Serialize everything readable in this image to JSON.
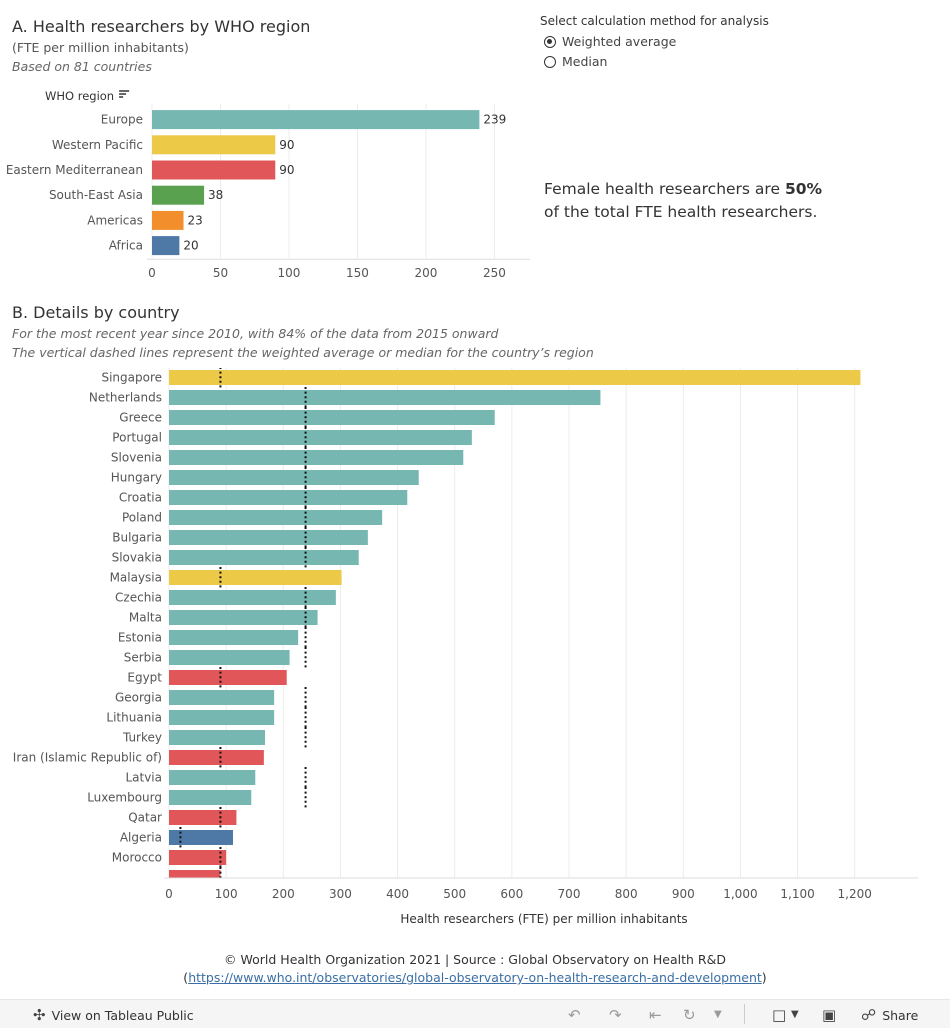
{
  "section_a": {
    "title": "A. Health researchers by WHO region",
    "subtitle": "(FTE per million inhabitants)",
    "note": "Based on 81 countries"
  },
  "parameter": {
    "title": "Select calculation method for analysis",
    "options": [
      {
        "label": "Weighted average",
        "selected": true
      },
      {
        "label": "Median",
        "selected": false
      }
    ]
  },
  "callout": {
    "prefix": "Female health researchers are ",
    "value": "50%",
    "suffix": "of the total FTE health researchers."
  },
  "section_b": {
    "title": "B. Details by country",
    "note1": "For the most recent year  since 2010, with 84% of the data from 2015 onward",
    "note2": "The vertical dashed lines represent the weighted average or median for the country’s region"
  },
  "colors": {
    "Europe": "#76b7b2",
    "Western Pacific": "#edc948",
    "Eastern Mediterranean": "#e15759",
    "South-East Asia": "#59a14f",
    "Americas": "#f28e2b",
    "Africa": "#4e79a7"
  },
  "chart_data": [
    {
      "type": "bar",
      "orientation": "horizontal",
      "header": "WHO region",
      "categories": [
        "Europe",
        "Western Pacific",
        "Eastern Mediterranean",
        "South-East Asia",
        "Americas",
        "Africa"
      ],
      "values": [
        239,
        90,
        90,
        38,
        23,
        20
      ],
      "data_labels": [
        "239",
        "90",
        "90",
        "38",
        "23",
        "20"
      ],
      "xlim": [
        0,
        265
      ],
      "xticks": [
        0,
        50,
        100,
        150,
        200,
        250
      ],
      "xtick_labels": [
        "0",
        "50",
        "100",
        "150",
        "200",
        "250"
      ],
      "grid": true
    },
    {
      "type": "bar",
      "orientation": "horizontal",
      "xlabel": "Health researchers (FTE) per million inhabitants",
      "categories": [
        "Singapore",
        "Netherlands",
        "Greece",
        "Portugal",
        "Slovenia",
        "Hungary",
        "Croatia",
        "Poland",
        "Bulgaria",
        "Slovakia",
        "Malaysia",
        "Czechia",
        "Malta",
        "Estonia",
        "Serbia",
        "Egypt",
        "Georgia",
        "Lithuania",
        "Turkey",
        "Iran (Islamic Republic of)",
        "Latvia",
        "Luxembourg",
        "Qatar",
        "Algeria",
        "Morocco"
      ],
      "values": [
        1210,
        755,
        570,
        530,
        515,
        437,
        417,
        373,
        348,
        332,
        302,
        292,
        260,
        226,
        211,
        206,
        184,
        184,
        168,
        166,
        151,
        144,
        118,
        112,
        100
      ],
      "regions": [
        "Western Pacific",
        "Europe",
        "Europe",
        "Europe",
        "Europe",
        "Europe",
        "Europe",
        "Europe",
        "Europe",
        "Europe",
        "Western Pacific",
        "Europe",
        "Europe",
        "Europe",
        "Europe",
        "Eastern Mediterranean",
        "Europe",
        "Europe",
        "Europe",
        "Eastern Mediterranean",
        "Europe",
        "Europe",
        "Eastern Mediterranean",
        "Africa",
        "Eastern Mediterranean"
      ],
      "reference_lines": {
        "Europe": 239,
        "Western Pacific": 90,
        "Eastern Mediterranean": 90,
        "Africa": 20
      },
      "xlim": [
        0,
        1260
      ],
      "xticks": [
        0,
        100,
        200,
        300,
        400,
        500,
        600,
        700,
        800,
        900,
        1000,
        1100,
        1200
      ],
      "xtick_labels": [
        "0",
        "100",
        "200",
        "300",
        "400",
        "500",
        "600",
        "700",
        "800",
        "900",
        "1,000",
        "1,100",
        "1,200"
      ],
      "grid": true
    }
  ],
  "footer": {
    "line1": "© World Health Organization 2021 | Source : Global Observatory on Health R&D",
    "link_open": "(",
    "link": "https://www.who.int/observatories/global-observatory-on-health-research-and-development",
    "link_close": ")"
  },
  "toolbar": {
    "view_label": "View on Tableau Public",
    "share_label": "Share"
  }
}
